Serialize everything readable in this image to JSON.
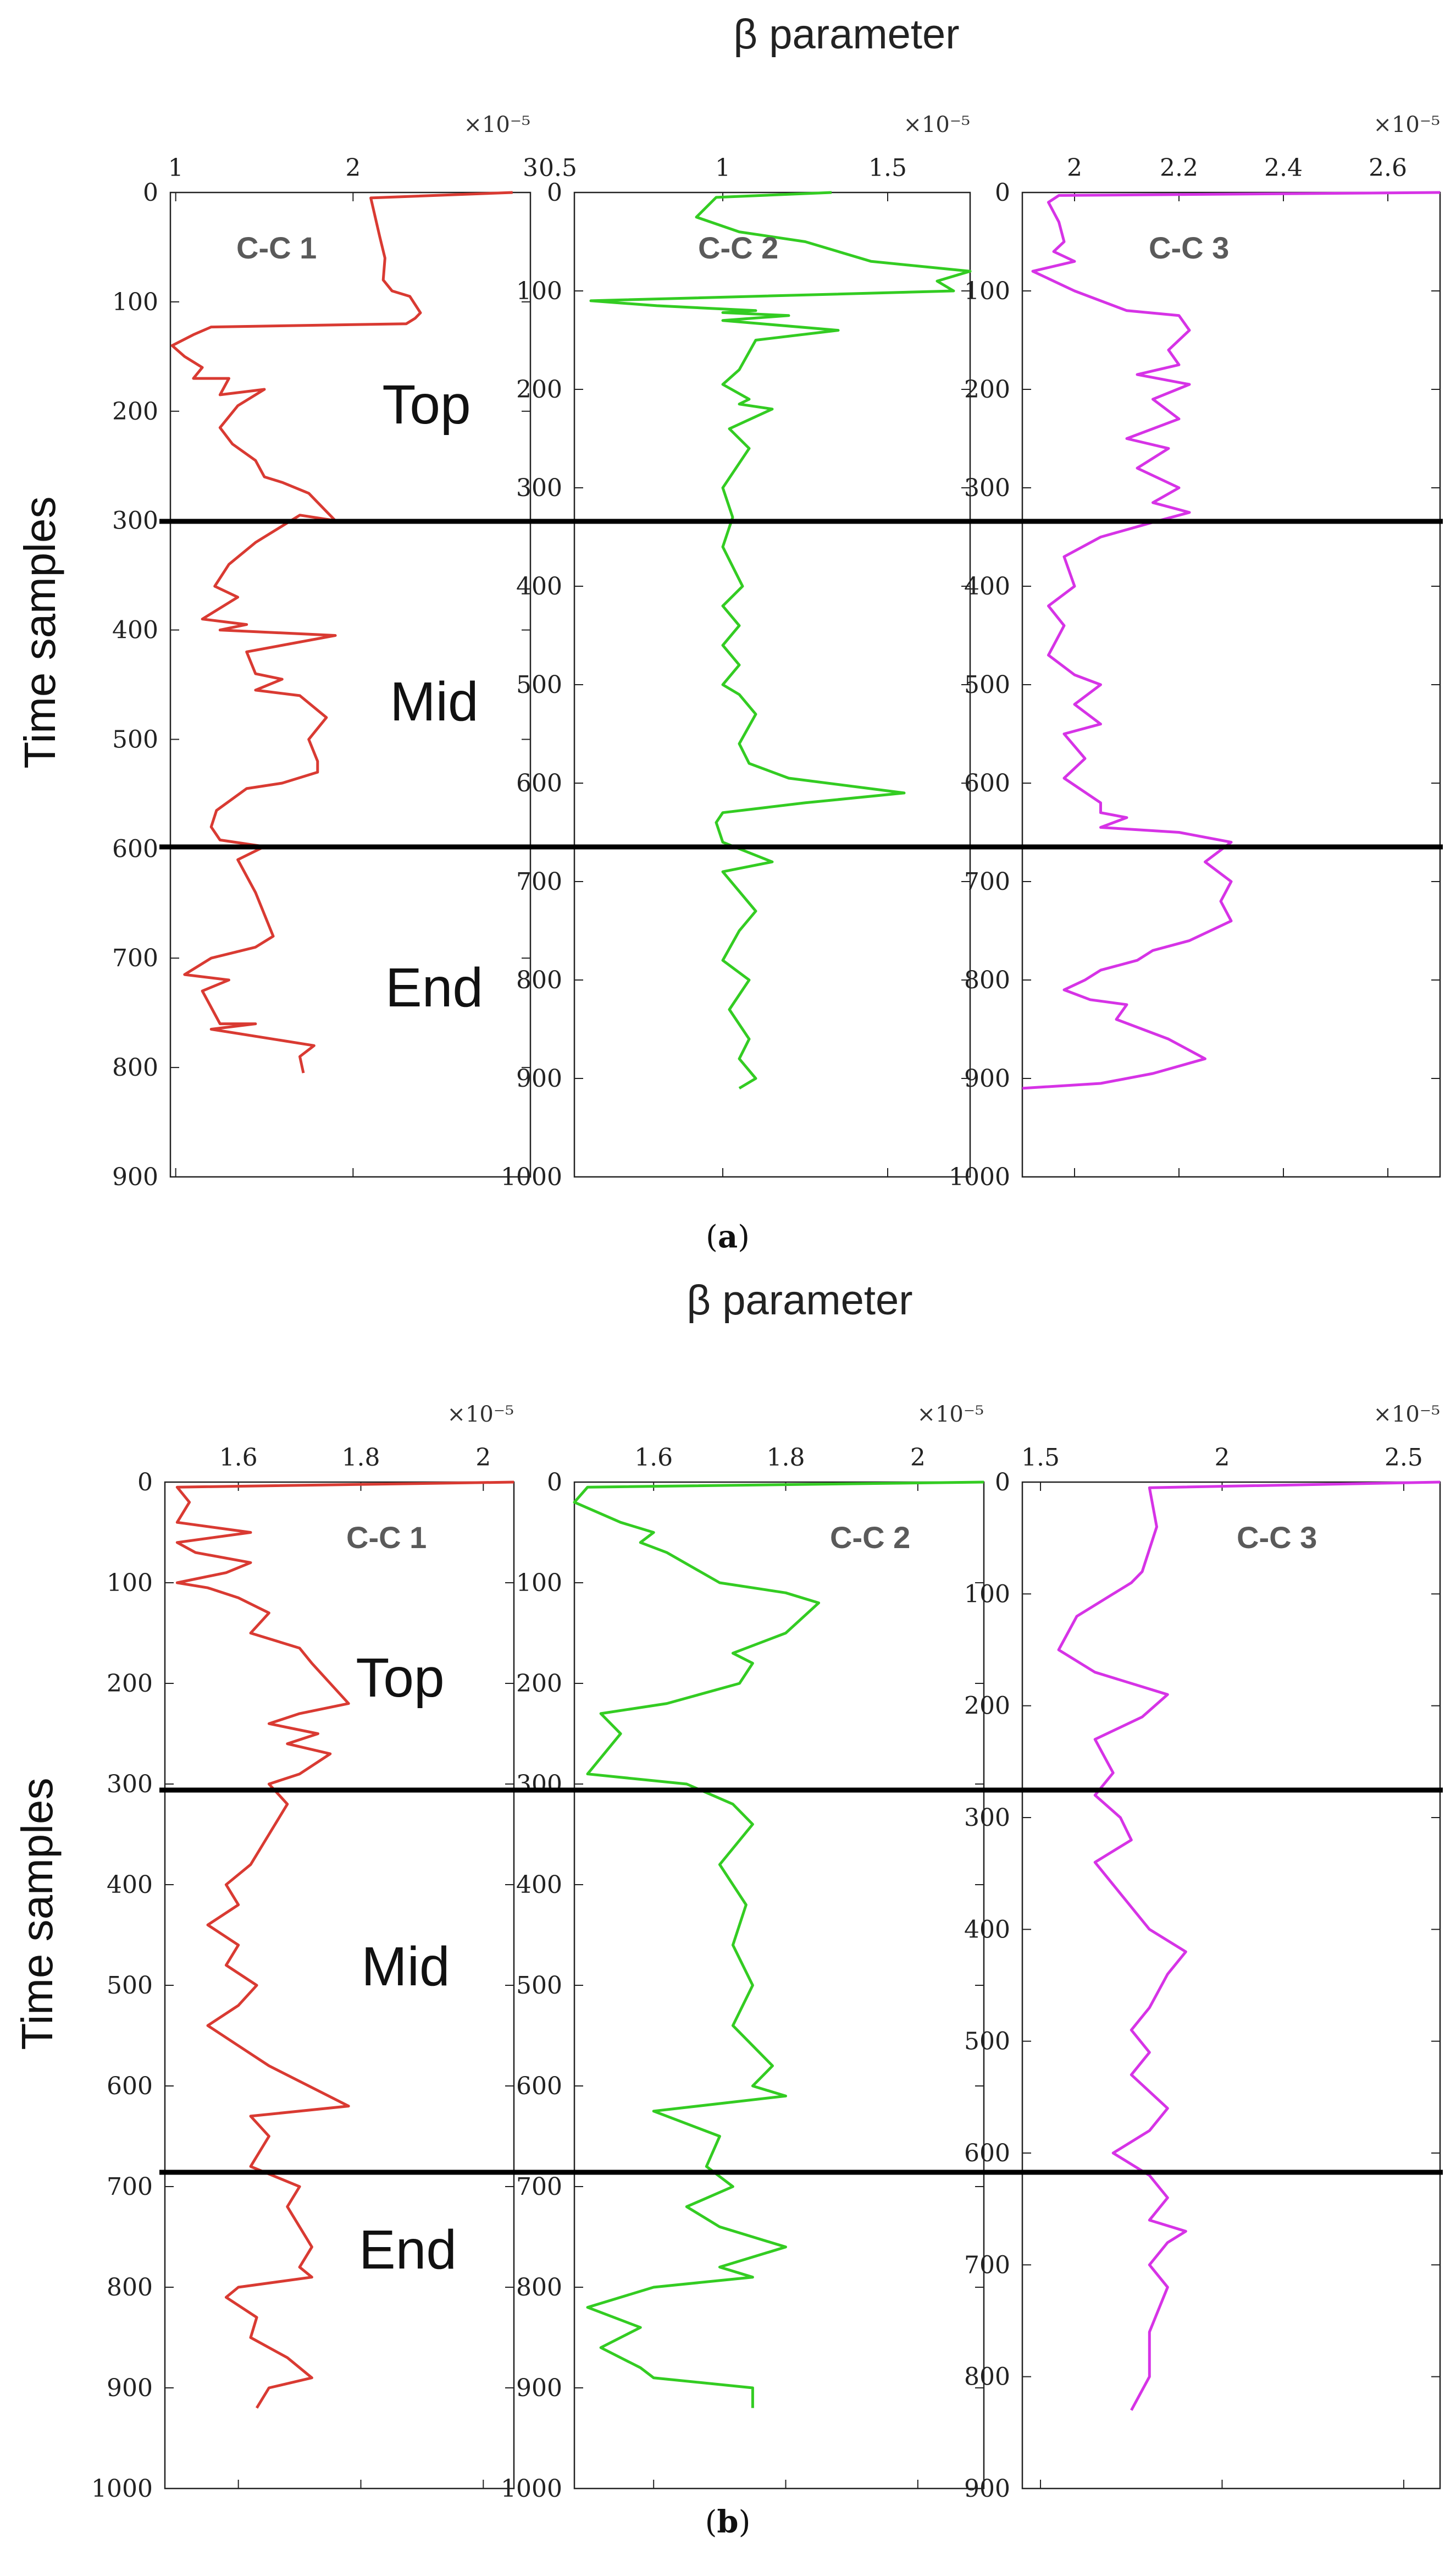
{
  "figure": {
    "panels": [
      {
        "id": "a",
        "title": "β parameter",
        "ylabel": "Time samples",
        "caption_open": "(",
        "caption_letter": "a",
        "caption_close": ")",
        "regions": [
          "Top",
          "Mid",
          "End"
        ],
        "region_boundaries": [
          300,
          600
        ]
      },
      {
        "id": "b",
        "title": "β parameter",
        "ylabel": "Time samples",
        "caption_open": "(",
        "caption_letter": "b",
        "caption_close": ")",
        "regions": [
          "Top",
          "Mid",
          "End"
        ],
        "region_boundaries": [
          300,
          625
        ]
      }
    ]
  },
  "colors": {
    "red": "#d93a32",
    "green": "#33cc22",
    "magenta": "#d633e6",
    "boundary": "#000000"
  },
  "chart_data": [
    {
      "type": "line",
      "panel": "a",
      "label": "C-C 1",
      "color": "#d93a32",
      "multiplier": "×10⁻⁵",
      "xlim": [
        0.97,
        3.0
      ],
      "ylim": [
        0,
        900
      ],
      "yticks": [
        0,
        100,
        200,
        300,
        400,
        500,
        600,
        700,
        800,
        900
      ],
      "xticks": [
        1,
        2,
        3
      ],
      "xtick_labels": [
        "1",
        "2",
        "3"
      ],
      "series": [
        {
          "name": "C-C 1",
          "x": [
            2.9,
            2.1,
            2.15,
            2.18,
            2.17,
            2.22,
            2.32,
            2.38,
            2.35,
            2.3,
            1.2,
            1.1,
            0.98,
            1.05,
            1.15,
            1.1,
            1.3,
            1.25,
            1.5,
            1.35,
            1.25,
            1.32,
            1.45,
            1.5,
            1.6,
            1.75,
            1.9,
            1.7,
            1.45,
            1.3,
            1.22,
            1.35,
            1.15,
            1.4,
            1.25,
            1.9,
            1.4,
            1.45,
            1.6,
            1.45,
            1.7,
            1.85,
            1.75,
            1.8,
            1.8,
            1.6,
            1.4,
            1.23,
            1.2,
            1.25,
            1.5,
            1.35,
            1.45,
            1.5,
            1.55,
            1.45,
            1.2,
            1.05,
            1.3,
            1.15,
            1.25,
            1.45,
            1.2,
            1.78,
            1.7,
            1.72
          ],
          "y": [
            0,
            5,
            40,
            60,
            80,
            90,
            95,
            110,
            115,
            120,
            123,
            130,
            140,
            150,
            160,
            170,
            170,
            185,
            180,
            195,
            215,
            230,
            245,
            260,
            265,
            275,
            300,
            295,
            320,
            340,
            360,
            370,
            390,
            395,
            400,
            405,
            420,
            440,
            445,
            455,
            460,
            480,
            500,
            520,
            530,
            540,
            545,
            565,
            580,
            592,
            598,
            610,
            640,
            660,
            680,
            690,
            700,
            715,
            720,
            730,
            760,
            760,
            765,
            780,
            790,
            805
          ]
        }
      ]
    },
    {
      "type": "line",
      "panel": "a",
      "label": "C-C 2",
      "color": "#33cc22",
      "multiplier": "×10⁻⁵",
      "xlim": [
        0.55,
        1.75
      ],
      "ylim": [
        0,
        1000
      ],
      "yticks": [
        0,
        100,
        200,
        300,
        400,
        500,
        600,
        700,
        800,
        900,
        1000
      ],
      "xticks": [
        0.5,
        1,
        1.5
      ],
      "xtick_labels": [
        "0.5",
        "1",
        "1.5"
      ],
      "series": [
        {
          "name": "C-C 2",
          "x": [
            1.33,
            0.98,
            0.92,
            1.05,
            1.25,
            1.45,
            1.75,
            1.65,
            1.7,
            0.6,
            0.8,
            1.1,
            1.0,
            1.2,
            1.0,
            1.35,
            1.1,
            1.05,
            1.0,
            1.08,
            1.05,
            1.15,
            1.02,
            1.08,
            1.0,
            1.03,
            1.0,
            1.06,
            1.0,
            1.05,
            1.0,
            1.05,
            1.0,
            1.05,
            1.1,
            1.05,
            1.08,
            1.2,
            1.55,
            1.25,
            1.0,
            0.98,
            1.0,
            1.15,
            1.0,
            1.05,
            1.1,
            1.05,
            1.0,
            1.08,
            1.02,
            1.08,
            1.05,
            1.1,
            1.05
          ],
          "y": [
            0,
            5,
            25,
            40,
            50,
            70,
            80,
            90,
            100,
            110,
            115,
            120,
            122,
            125,
            130,
            140,
            150,
            180,
            195,
            210,
            215,
            220,
            240,
            260,
            300,
            330,
            360,
            400,
            420,
            440,
            460,
            480,
            500,
            510,
            530,
            560,
            580,
            595,
            610,
            620,
            630,
            640,
            660,
            680,
            690,
            710,
            730,
            750,
            780,
            800,
            830,
            860,
            880,
            900,
            910
          ]
        }
      ]
    },
    {
      "type": "line",
      "panel": "a",
      "label": "C-C 3",
      "color": "#d633e6",
      "multiplier": "×10⁻⁵",
      "xlim": [
        1.9,
        2.7
      ],
      "ylim": [
        0,
        1000
      ],
      "yticks": [
        0,
        100,
        200,
        300,
        400,
        500,
        600,
        700,
        800,
        900,
        1000
      ],
      "xticks": [
        2,
        2.2,
        2.4,
        2.6
      ],
      "xtick_labels": [
        "2",
        "2.2",
        "2.4",
        "2.6"
      ],
      "series": [
        {
          "name": "C-C 3",
          "x": [
            2.7,
            1.97,
            1.95,
            1.97,
            1.98,
            1.96,
            2.0,
            1.92,
            2.0,
            2.1,
            2.2,
            2.22,
            2.18,
            2.2,
            2.12,
            2.22,
            2.15,
            2.2,
            2.1,
            2.18,
            2.12,
            2.2,
            2.15,
            2.22,
            2.15,
            2.05,
            1.98,
            2.0,
            1.95,
            1.98,
            1.95,
            2.0,
            2.05,
            2.0,
            2.05,
            1.98,
            2.02,
            1.98,
            2.05,
            2.05,
            2.1,
            2.05,
            2.2,
            2.3,
            2.25,
            2.3,
            2.28,
            2.3,
            2.22,
            2.15,
            2.12,
            2.05,
            2.02,
            1.98,
            2.03,
            2.1,
            2.08,
            2.18,
            2.25,
            2.15,
            2.05,
            1.9
          ],
          "y": [
            0,
            3,
            10,
            30,
            50,
            60,
            70,
            80,
            100,
            120,
            125,
            140,
            160,
            175,
            185,
            195,
            210,
            230,
            250,
            260,
            280,
            300,
            315,
            325,
            335,
            350,
            370,
            400,
            420,
            440,
            470,
            490,
            500,
            520,
            540,
            550,
            575,
            595,
            620,
            630,
            635,
            645,
            650,
            660,
            680,
            700,
            720,
            740,
            760,
            770,
            780,
            790,
            800,
            810,
            820,
            825,
            840,
            860,
            880,
            895,
            905,
            910
          ]
        }
      ]
    },
    {
      "type": "line",
      "panel": "b",
      "label": "C-C 1",
      "color": "#d93a32",
      "multiplier": "×10⁻⁵",
      "xlim": [
        1.48,
        2.05
      ],
      "ylim": [
        0,
        1000
      ],
      "yticks": [
        0,
        100,
        200,
        300,
        400,
        500,
        600,
        700,
        800,
        900,
        1000
      ],
      "xticks": [
        1.6,
        1.8,
        2
      ],
      "xtick_labels": [
        "1.6",
        "1.8",
        "2"
      ],
      "series": [
        {
          "name": "C-C 1",
          "x": [
            2.05,
            1.5,
            1.52,
            1.5,
            1.62,
            1.5,
            1.53,
            1.62,
            1.58,
            1.5,
            1.55,
            1.6,
            1.65,
            1.62,
            1.7,
            1.72,
            1.75,
            1.78,
            1.7,
            1.65,
            1.73,
            1.68,
            1.75,
            1.7,
            1.65,
            1.68,
            1.65,
            1.62,
            1.58,
            1.6,
            1.55,
            1.6,
            1.58,
            1.63,
            1.6,
            1.55,
            1.6,
            1.65,
            1.78,
            1.62,
            1.65,
            1.62,
            1.7,
            1.68,
            1.72,
            1.7,
            1.72,
            1.6,
            1.58,
            1.63,
            1.62,
            1.68,
            1.72,
            1.65,
            1.63
          ],
          "y": [
            0,
            5,
            20,
            40,
            50,
            60,
            70,
            80,
            90,
            100,
            105,
            115,
            130,
            150,
            165,
            180,
            200,
            220,
            230,
            240,
            250,
            260,
            270,
            290,
            300,
            320,
            350,
            380,
            400,
            420,
            440,
            460,
            480,
            500,
            520,
            540,
            560,
            580,
            620,
            630,
            650,
            680,
            700,
            720,
            760,
            780,
            790,
            800,
            810,
            830,
            850,
            870,
            890,
            900,
            920
          ]
        }
      ]
    },
    {
      "type": "line",
      "panel": "b",
      "label": "C-C 2",
      "color": "#33cc22",
      "multiplier": "×10⁻⁵",
      "xlim": [
        1.48,
        2.1
      ],
      "ylim": [
        0,
        1000
      ],
      "yticks": [
        0,
        100,
        200,
        300,
        400,
        500,
        600,
        700,
        800,
        900,
        1000
      ],
      "xticks": [
        1.6,
        1.8,
        2
      ],
      "xtick_labels": [
        "1.6",
        "1.8",
        "2"
      ],
      "series": [
        {
          "name": "C-C 2",
          "x": [
            2.1,
            1.5,
            1.48,
            1.55,
            1.6,
            1.58,
            1.62,
            1.7,
            1.8,
            1.85,
            1.8,
            1.72,
            1.75,
            1.73,
            1.62,
            1.52,
            1.55,
            1.5,
            1.65,
            1.72,
            1.75,
            1.7,
            1.74,
            1.72,
            1.75,
            1.72,
            1.78,
            1.75,
            1.8,
            1.6,
            1.7,
            1.68,
            1.72,
            1.65,
            1.7,
            1.8,
            1.7,
            1.75,
            1.6,
            1.5,
            1.58,
            1.52,
            1.58,
            1.6,
            1.75,
            1.75
          ],
          "y": [
            0,
            5,
            20,
            40,
            50,
            60,
            70,
            100,
            110,
            120,
            150,
            170,
            180,
            200,
            220,
            230,
            250,
            290,
            300,
            320,
            340,
            380,
            420,
            460,
            500,
            540,
            580,
            600,
            610,
            625,
            650,
            680,
            700,
            720,
            740,
            760,
            780,
            790,
            800,
            820,
            840,
            860,
            880,
            890,
            900,
            920
          ]
        }
      ]
    },
    {
      "type": "line",
      "panel": "b",
      "label": "C-C 3",
      "color": "#d633e6",
      "multiplier": "×10⁻⁵",
      "xlim": [
        1.45,
        2.6
      ],
      "ylim": [
        0,
        900
      ],
      "yticks": [
        0,
        100,
        200,
        300,
        400,
        500,
        600,
        700,
        800,
        900
      ],
      "xticks": [
        1.5,
        2,
        2.5
      ],
      "xtick_labels": [
        "1.5",
        "2",
        "2.5"
      ],
      "series": [
        {
          "name": "C-C 3",
          "x": [
            2.6,
            1.8,
            1.82,
            1.78,
            1.75,
            1.7,
            1.6,
            1.55,
            1.65,
            1.85,
            1.78,
            1.65,
            1.7,
            1.65,
            1.72,
            1.75,
            1.65,
            1.7,
            1.75,
            1.8,
            1.9,
            1.85,
            1.8,
            1.75,
            1.8,
            1.75,
            1.85,
            1.8,
            1.7,
            1.8,
            1.85,
            1.8,
            1.9,
            1.85,
            1.8,
            1.85,
            1.8,
            1.8,
            1.75
          ],
          "y": [
            0,
            5,
            40,
            80,
            90,
            100,
            120,
            150,
            170,
            190,
            210,
            230,
            260,
            280,
            300,
            320,
            340,
            360,
            380,
            400,
            420,
            440,
            470,
            490,
            510,
            530,
            560,
            580,
            600,
            620,
            640,
            660,
            670,
            680,
            700,
            720,
            760,
            800,
            830
          ]
        }
      ]
    }
  ]
}
